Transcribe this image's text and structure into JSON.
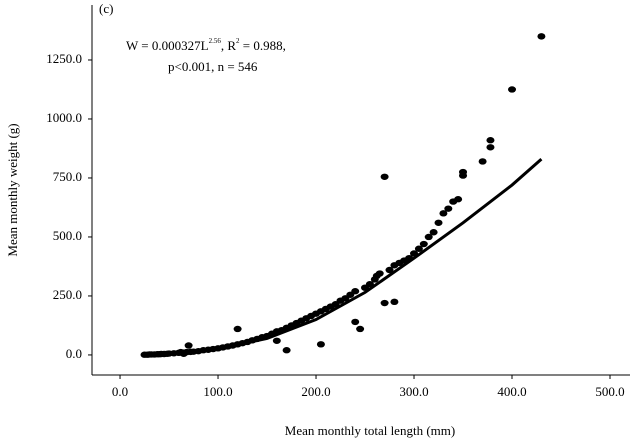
{
  "chart_data": {
    "type": "scatter",
    "panel_label": "(c)",
    "annotation": {
      "w_text": "W = 0.000327L",
      "w_exponent": "2.56",
      "r_text": ", R",
      "r_exponent": "2",
      "r_value": " = 0.988,",
      "line2": "p<0.001, n = 546"
    },
    "x_label": "Mean monthly total length (mm)",
    "y_label": "Mean monthly weight (g)",
    "xlim": [
      -28.6,
      520.4
    ],
    "ylim": [
      -85,
      1483
    ],
    "xticks": [
      {
        "value": 0,
        "label": "0.0"
      },
      {
        "value": 100,
        "label": "100.0"
      },
      {
        "value": 200,
        "label": "200.0"
      },
      {
        "value": 300,
        "label": "300.0"
      },
      {
        "value": 400,
        "label": "400.0"
      },
      {
        "value": 500,
        "label": "500.0"
      }
    ],
    "yticks": [
      {
        "value": 0,
        "label": "0.0"
      },
      {
        "value": 250,
        "label": "250.0"
      },
      {
        "value": 500,
        "label": "500.0"
      },
      {
        "value": 750,
        "label": "750.0"
      },
      {
        "value": 1000,
        "label": "1000.0"
      },
      {
        "value": 1250,
        "label": "1250.0"
      }
    ],
    "series": [
      {
        "type": "scatter",
        "color": "#000000",
        "x": [
          25,
          28,
          30,
          32,
          35,
          38,
          40,
          42,
          45,
          48,
          50,
          55,
          60,
          62,
          65,
          68,
          70,
          72,
          75,
          80,
          85,
          90,
          95,
          100,
          105,
          110,
          115,
          120,
          120,
          125,
          130,
          135,
          140,
          145,
          150,
          155,
          160,
          165,
          170,
          170,
          175,
          180,
          185,
          190,
          195,
          200,
          205,
          205,
          210,
          215,
          220,
          225,
          230,
          235,
          240,
          240,
          245,
          250,
          255,
          260,
          262,
          265,
          270,
          270,
          275,
          280,
          280,
          285,
          290,
          295,
          300,
          305,
          310,
          315,
          320,
          325,
          330,
          335,
          340,
          345,
          350,
          350,
          370,
          378,
          378,
          400,
          430,
          160,
          65
        ],
        "values": [
          1,
          1,
          2,
          2,
          2,
          3,
          3,
          4,
          4,
          5,
          6,
          7,
          9,
          12,
          10,
          12,
          40,
          13,
          14,
          16,
          20,
          22,
          25,
          28,
          32,
          36,
          40,
          110,
          45,
          50,
          55,
          62,
          68,
          75,
          80,
          90,
          100,
          105,
          20,
          115,
          125,
          135,
          145,
          155,
          165,
          175,
          45,
          185,
          195,
          205,
          215,
          230,
          240,
          255,
          140,
          270,
          110,
          285,
          300,
          320,
          335,
          345,
          755,
          220,
          360,
          225,
          380,
          390,
          400,
          410,
          430,
          450,
          470,
          500,
          520,
          560,
          600,
          620,
          650,
          660,
          775,
          760,
          820,
          910,
          880,
          1125,
          1350,
          60,
          5
        ]
      },
      {
        "type": "line",
        "color": "#000000",
        "x": [
          25,
          50,
          100,
          150,
          200,
          250,
          300,
          350,
          400,
          430
        ],
        "values": [
          0,
          3,
          25,
          70,
          150,
          265,
          410,
          560,
          720,
          830
        ]
      }
    ]
  }
}
